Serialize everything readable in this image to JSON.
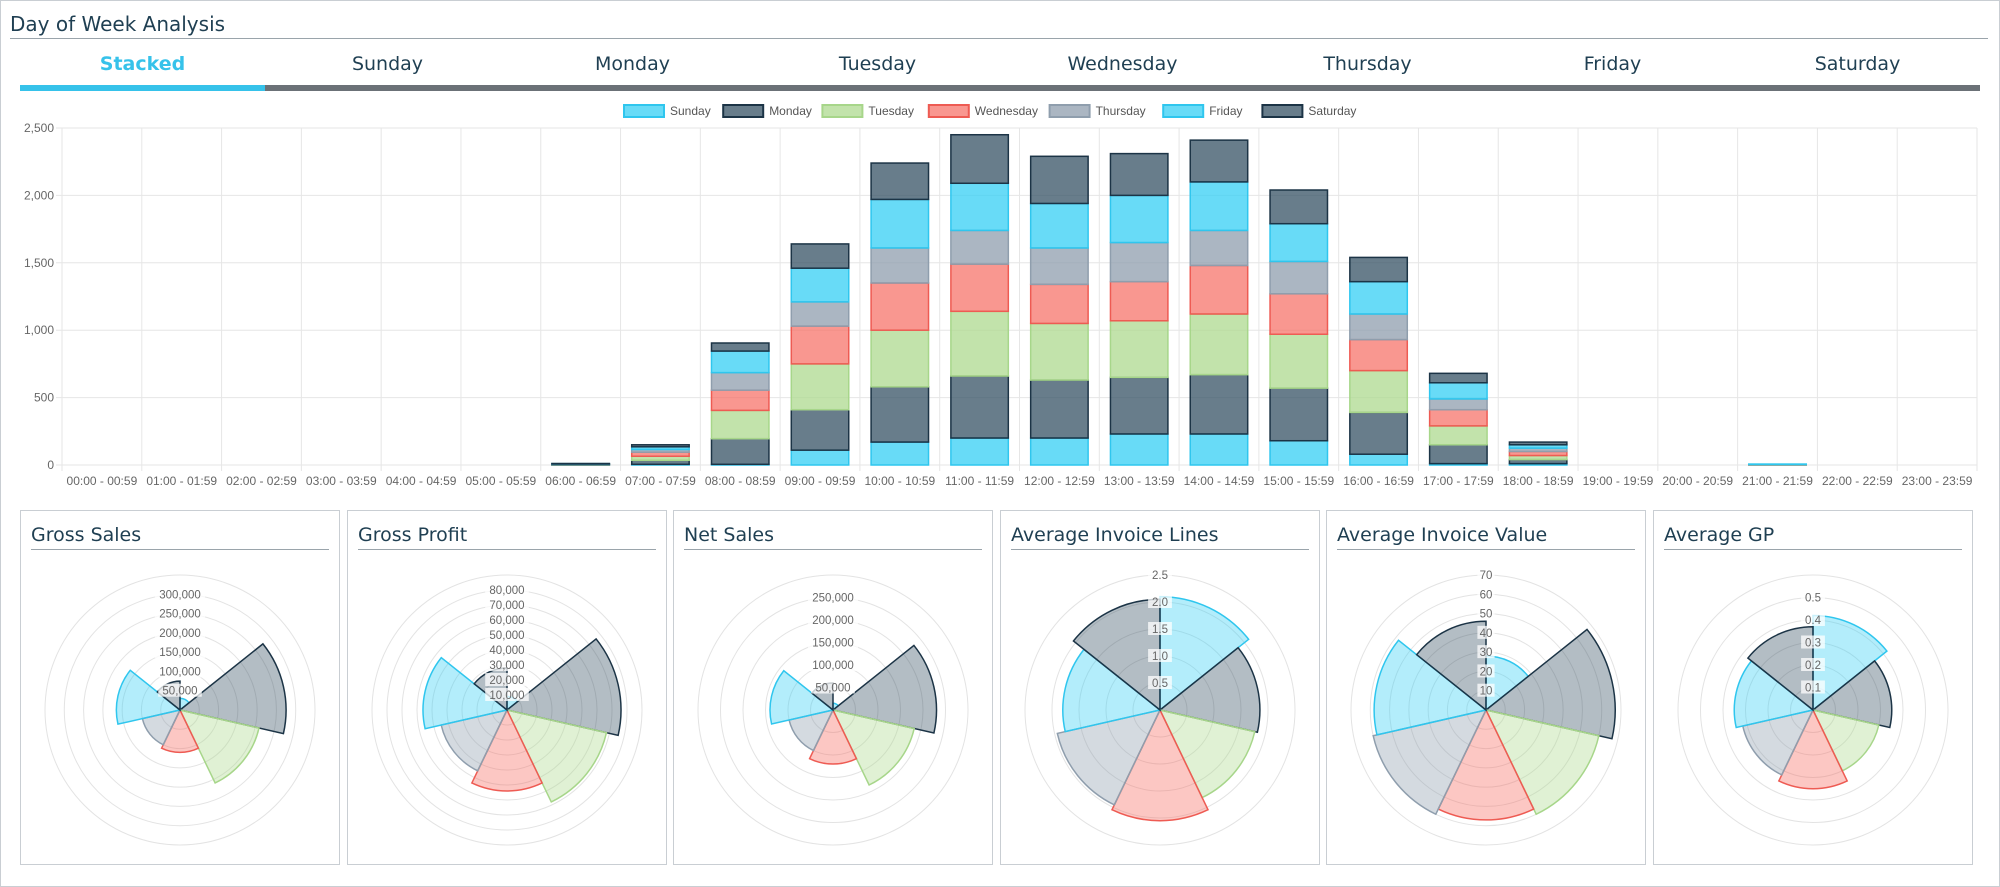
{
  "page": {
    "title": "Day of Week Analysis"
  },
  "tabs": [
    "Stacked",
    "Sunday",
    "Monday",
    "Tuesday",
    "Wednesday",
    "Thursday",
    "Friday",
    "Saturday"
  ],
  "colors": {
    "Sunday": {
      "fill": "rgba(54,207,244,0.75)",
      "stroke": "#2fc6ee"
    },
    "Monday": {
      "fill": "rgba(54,82,100,0.75)",
      "stroke": "#1c3446"
    },
    "Tuesday": {
      "fill": "rgba(173,218,143,0.75)",
      "stroke": "#a7d68a"
    },
    "Wednesday": {
      "fill": "rgba(247,107,97,0.7)",
      "stroke": "#ee5b53"
    },
    "Thursday": {
      "fill": "rgba(143,158,173,0.75)",
      "stroke": "#8f9ead"
    },
    "Friday": {
      "fill": "rgba(54,207,244,0.75)",
      "stroke": "#2fc6ee"
    },
    "Saturday": {
      "fill": "rgba(54,82,100,0.75)",
      "stroke": "#1c3446"
    }
  },
  "chart_data": [
    {
      "type": "bar",
      "stacked": true,
      "title": "",
      "legend_position": "top",
      "grid": true,
      "categories": [
        "00:00 - 00:59",
        "01:00 - 01:59",
        "02:00 - 02:59",
        "03:00 - 03:59",
        "04:00 - 04:59",
        "05:00 - 05:59",
        "06:00 - 06:59",
        "07:00 - 07:59",
        "08:00 - 08:59",
        "09:00 - 09:59",
        "10:00 - 10:59",
        "11:00 - 11:59",
        "12:00 - 12:59",
        "13:00 - 13:59",
        "14:00 - 14:59",
        "15:00 - 15:59",
        "16:00 - 16:59",
        "17:00 - 17:59",
        "18:00 - 18:59",
        "19:00 - 19:59",
        "20:00 - 20:59",
        "21:00 - 21:59",
        "22:00 - 22:59",
        "23:00 - 23:59"
      ],
      "ylim": [
        0,
        2500
      ],
      "yticks": [
        "0",
        "500",
        "1,000",
        "1,500",
        "2,000",
        "2,500"
      ],
      "series": [
        {
          "name": "Sunday",
          "values": [
            0,
            0,
            0,
            0,
            0,
            0,
            2,
            5,
            5,
            110,
            170,
            200,
            200,
            230,
            230,
            180,
            80,
            10,
            10,
            0,
            0,
            0,
            0,
            0
          ]
        },
        {
          "name": "Monday",
          "values": [
            0,
            0,
            0,
            0,
            0,
            0,
            2,
            30,
            190,
            300,
            410,
            460,
            430,
            420,
            440,
            390,
            310,
            140,
            30,
            0,
            0,
            0,
            0,
            0
          ]
        },
        {
          "name": "Tuesday",
          "values": [
            0,
            0,
            0,
            0,
            0,
            0,
            2,
            30,
            210,
            340,
            420,
            480,
            420,
            420,
            450,
            400,
            310,
            140,
            30,
            0,
            0,
            2,
            0,
            0
          ]
        },
        {
          "name": "Wednesday",
          "values": [
            0,
            0,
            0,
            0,
            0,
            0,
            2,
            30,
            150,
            280,
            350,
            350,
            290,
            290,
            360,
            300,
            230,
            120,
            30,
            0,
            0,
            2,
            0,
            0
          ]
        },
        {
          "name": "Thursday",
          "values": [
            0,
            0,
            0,
            0,
            0,
            0,
            1,
            20,
            130,
            180,
            260,
            250,
            270,
            290,
            260,
            240,
            190,
            80,
            25,
            0,
            0,
            1,
            0,
            0
          ]
        },
        {
          "name": "Friday",
          "values": [
            0,
            0,
            0,
            0,
            0,
            0,
            1,
            20,
            160,
            250,
            360,
            350,
            330,
            350,
            360,
            280,
            240,
            120,
            25,
            0,
            0,
            2,
            0,
            0
          ]
        },
        {
          "name": "Saturday",
          "values": [
            0,
            0,
            0,
            0,
            0,
            0,
            1,
            15,
            60,
            180,
            270,
            360,
            350,
            310,
            310,
            250,
            180,
            70,
            20,
            0,
            0,
            0,
            0,
            0
          ]
        }
      ]
    },
    {
      "type": "polarArea",
      "title": "Gross Sales",
      "labels": [
        "Sunday",
        "Monday",
        "Tuesday",
        "Wednesday",
        "Thursday",
        "Friday",
        "Saturday"
      ],
      "values": [
        30000,
        275000,
        210000,
        110000,
        100000,
        165000,
        75000
      ],
      "rmax": 350000,
      "step": 50000,
      "ticks": [
        "50,000",
        "100,000",
        "150,000",
        "200,000",
        "250,000",
        "300,000"
      ]
    },
    {
      "type": "polarArea",
      "title": "Gross Profit",
      "labels": [
        "Sunday",
        "Monday",
        "Tuesday",
        "Wednesday",
        "Thursday",
        "Friday",
        "Saturday"
      ],
      "values": [
        9000,
        76000,
        68000,
        54000,
        45000,
        56000,
        28000
      ],
      "rmax": 90000,
      "step": 10000,
      "ticks": [
        "10,000",
        "20,000",
        "30,000",
        "40,000",
        "50,000",
        "60,000",
        "70,000",
        "80,000"
      ]
    },
    {
      "type": "polarArea",
      "title": "Net Sales",
      "labels": [
        "Sunday",
        "Monday",
        "Tuesday",
        "Wednesday",
        "Thursday",
        "Friday",
        "Saturday"
      ],
      "values": [
        15000,
        230000,
        185000,
        120000,
        100000,
        140000,
        60000
      ],
      "rmax": 300000,
      "step": 50000,
      "ticks": [
        "50,000",
        "100,000",
        "150,000",
        "200,000",
        "250,000"
      ]
    },
    {
      "type": "polarArea",
      "title": "Average Invoice Lines",
      "labels": [
        "Sunday",
        "Monday",
        "Tuesday",
        "Wednesday",
        "Thursday",
        "Friday",
        "Saturday"
      ],
      "values": [
        2.1,
        1.85,
        1.8,
        2.05,
        1.95,
        1.8,
        2.05
      ],
      "rmax": 2.5,
      "step": 0.5,
      "ticks": [
        "0.5",
        "1.0",
        "1.5",
        "2.0",
        "2.5"
      ]
    },
    {
      "type": "polarArea",
      "title": "Average Invoice Value",
      "labels": [
        "Sunday",
        "Monday",
        "Tuesday",
        "Wednesday",
        "Thursday",
        "Friday",
        "Saturday"
      ],
      "values": [
        28,
        67,
        60,
        57,
        60,
        58,
        46
      ],
      "rmax": 70,
      "step": 10,
      "ticks": [
        "10",
        "20",
        "30",
        "40",
        "50",
        "60",
        "70"
      ]
    },
    {
      "type": "polarArea",
      "title": "Average GP",
      "labels": [
        "Sunday",
        "Monday",
        "Tuesday",
        "Wednesday",
        "Thursday",
        "Friday",
        "Saturday"
      ],
      "values": [
        0.42,
        0.35,
        0.3,
        0.35,
        0.32,
        0.35,
        0.37
      ],
      "rmax": 0.6,
      "step": 0.1,
      "ticks": [
        "0.1",
        "0.2",
        "0.3",
        "0.4",
        "0.5"
      ]
    }
  ]
}
